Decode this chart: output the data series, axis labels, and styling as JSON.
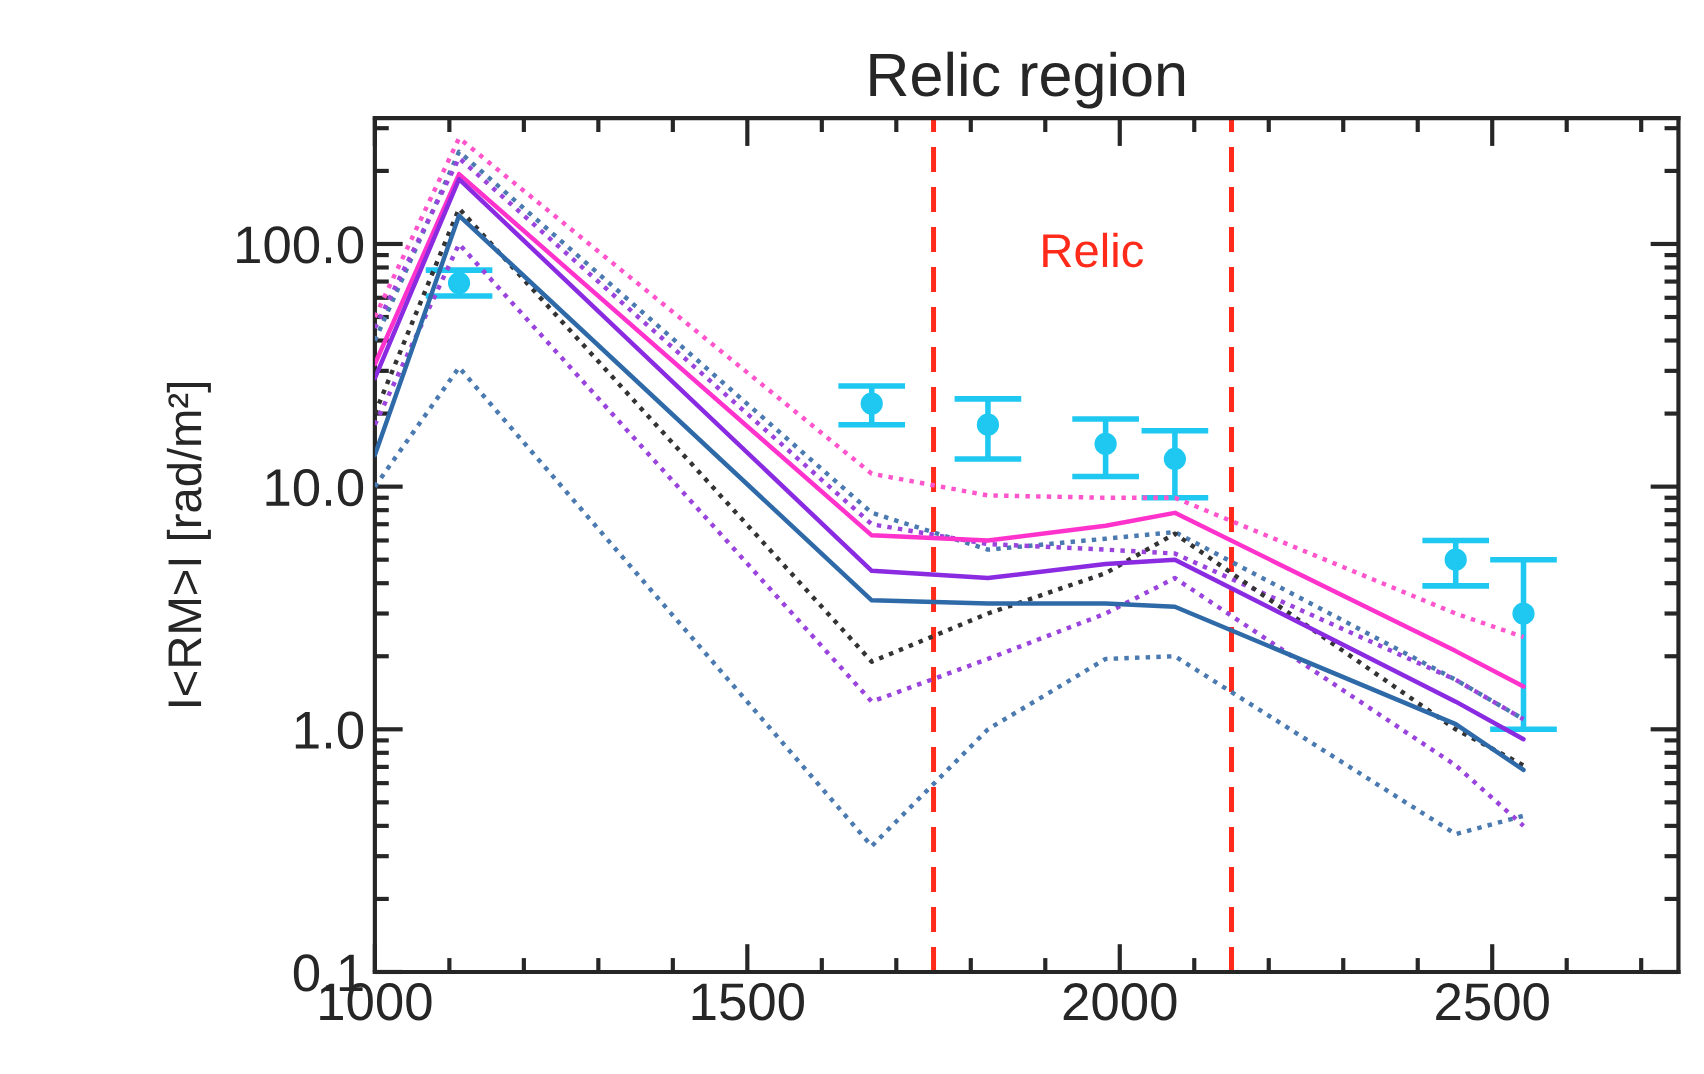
{
  "chart_data": {
    "type": "line",
    "title": "Relic region",
    "ylabel": "I<RM>I [rad/m²]",
    "log": "y",
    "grid": false,
    "legend": false,
    "xlim": [
      1000,
      2750
    ],
    "xticks": [
      1000,
      1500,
      2000,
      2500
    ],
    "ylim": [
      0.1,
      330
    ],
    "yticks": [
      {
        "value": 0.1,
        "label": "0.1"
      },
      {
        "value": 1,
        "label": "1.0"
      },
      {
        "value": 10,
        "label": "10.0"
      },
      {
        "value": 100,
        "label": "100.0"
      }
    ],
    "ref_lines": [
      {
        "axis": "x",
        "value": 1750,
        "color": "#ff2a1a",
        "line_style": "dashed"
      },
      {
        "axis": "x",
        "value": 2150,
        "color": "#ff2a1a",
        "line_style": "dashed"
      }
    ],
    "annotations": [
      "Relic"
    ],
    "series": [
      {
        "type": "line",
        "line_style": "dotted",
        "color": "#ff55cc",
        "x": [
          1000,
          1113,
          1667,
          1823,
          1981,
          2074,
          2451,
          2542
        ],
        "values": [
          50,
          273,
          11.3,
          9.2,
          9.0,
          9.0,
          3.0,
          2.4
        ]
      },
      {
        "type": "line",
        "line_style": "dotted",
        "color": "#4a7ab0",
        "x": [
          1000,
          1113,
          1667,
          1823,
          1981,
          2074,
          2451,
          2542
        ],
        "values": [
          40,
          240,
          7.8,
          5.5,
          6.1,
          6.5,
          1.6,
          1.1
        ]
      },
      {
        "type": "line",
        "line_style": "dotted",
        "color": "#9a44dd",
        "x": [
          1000,
          1113,
          1667,
          1823,
          1981,
          2074,
          2451,
          2542
        ],
        "values": [
          45,
          226,
          7.0,
          5.8,
          5.5,
          5.3,
          1.6,
          1.1
        ]
      },
      {
        "type": "line",
        "line_style": "dotted",
        "color": "#333333",
        "x": [
          1000,
          1113,
          1667,
          1823,
          1981,
          2074,
          2451,
          2542
        ],
        "values": [
          20,
          140,
          1.9,
          3.0,
          4.4,
          6.4,
          1.0,
          0.71
        ]
      },
      {
        "type": "line",
        "line_style": "dotted",
        "color": "#9a44dd",
        "x": [
          1000,
          1113,
          1667,
          1823,
          1981,
          2074,
          2451,
          2542
        ],
        "values": [
          18,
          100,
          1.3,
          1.95,
          3.0,
          4.2,
          0.71,
          0.4
        ]
      },
      {
        "type": "line",
        "line_style": "dotted",
        "color": "#4a7ab0",
        "x": [
          1000,
          1113,
          1667,
          1823,
          1981,
          2074,
          2451,
          2542
        ],
        "values": [
          10,
          31,
          0.33,
          1.0,
          1.95,
          2.0,
          0.37,
          0.44
        ]
      },
      {
        "type": "line",
        "line_style": "solid",
        "color": "#ff33cc",
        "x": [
          1000,
          1113,
          1667,
          1823,
          1981,
          2074,
          2451,
          2542
        ],
        "values": [
          32,
          194,
          6.3,
          6.0,
          6.9,
          7.8,
          2.1,
          1.5
        ]
      },
      {
        "type": "line",
        "line_style": "solid",
        "color": "#8a2be2",
        "x": [
          1000,
          1113,
          1667,
          1823,
          1981,
          2074,
          2451,
          2542
        ],
        "values": [
          28,
          185,
          4.5,
          4.2,
          4.8,
          5.0,
          1.3,
          0.91
        ]
      },
      {
        "type": "line",
        "line_style": "solid",
        "color": "#2f6aa8",
        "x": [
          1000,
          1113,
          1667,
          1823,
          1981,
          2074,
          2451,
          2542
        ],
        "values": [
          13.5,
          131,
          3.4,
          3.3,
          3.3,
          3.2,
          1.05,
          0.68
        ]
      },
      {
        "type": "scatter",
        "marker": "circle",
        "color": "#1ec8f0",
        "x": [
          1113,
          1667,
          1823,
          1981,
          2074,
          2451,
          2542
        ],
        "values": [
          69,
          22,
          18,
          15,
          13,
          5.0,
          3.0
        ],
        "errors": [
          [
            61,
            78
          ],
          [
            18,
            26
          ],
          [
            13,
            23
          ],
          [
            11,
            19
          ],
          [
            9,
            17
          ],
          [
            3.9,
            6.0
          ],
          [
            1.0,
            5.0
          ]
        ]
      }
    ]
  }
}
